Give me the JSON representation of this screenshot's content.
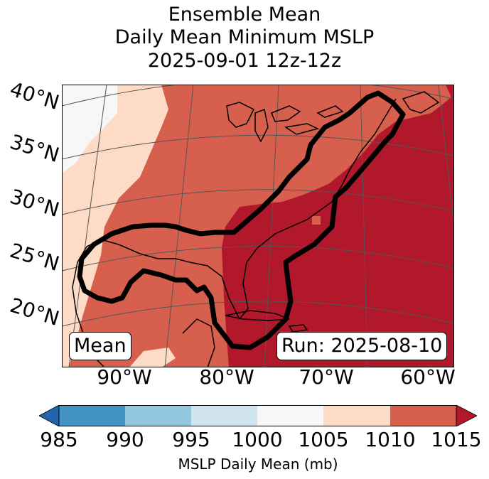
{
  "title": {
    "line1": "Ensemble Mean",
    "line2": "Daily Mean Minimum MSLP",
    "line3": "2025-09-01 12z-12z"
  },
  "map": {
    "lat_labels": [
      "40°N",
      "35°N",
      "30°N",
      "25°N",
      "20°N"
    ],
    "lon_labels": [
      "90°W",
      "80°W",
      "70°W",
      "60°W"
    ],
    "mean_label": "Mean",
    "run_label": "Run: 2025-08-10"
  },
  "colorbar": {
    "ticks": [
      "985",
      "990",
      "995",
      "1000",
      "1005",
      "1010",
      "1015"
    ],
    "label": "MSLP Daily Mean (mb)",
    "colors": {
      "under": "#2166ac",
      "c985_990": "#4393c3",
      "c990_995": "#92c5de",
      "c995_1000": "#d1e5f0",
      "c1000_1005": "#f7f7f7",
      "c1005_1010": "#fddbc7",
      "c1010_1015": "#d6604d",
      "over": "#b2182b"
    }
  },
  "colors": {
    "gridline": "#555555",
    "coast": "#000000",
    "contour": "#000000"
  }
}
